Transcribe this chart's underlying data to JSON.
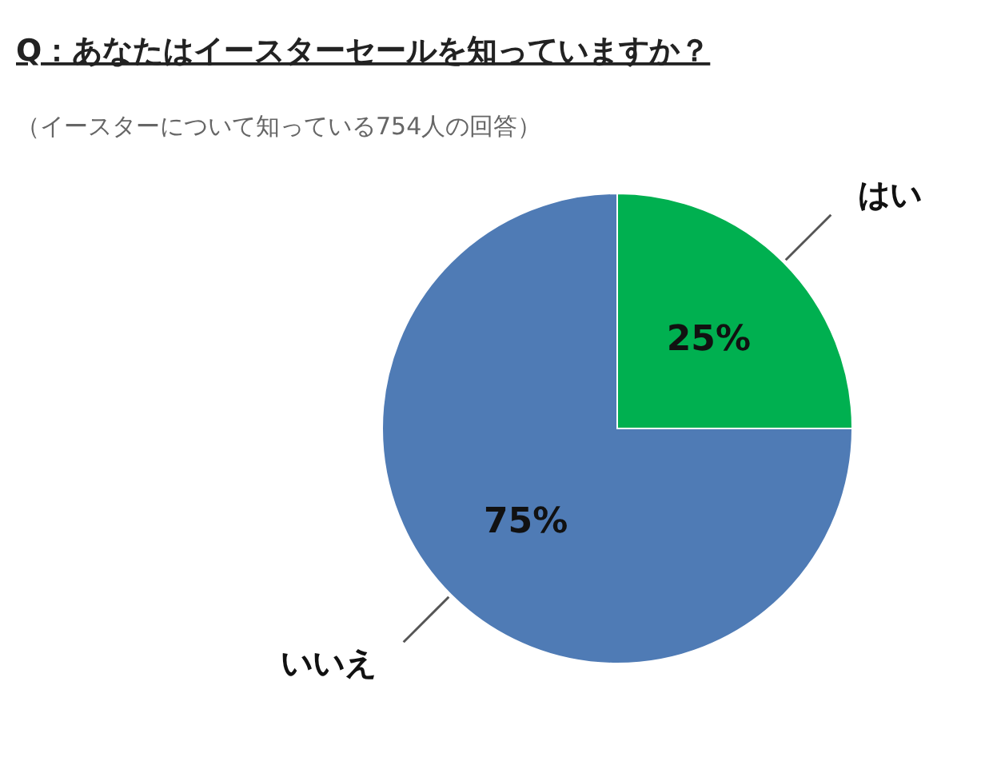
{
  "chart_data": {
    "type": "pie",
    "title": "Q：あなたはイースターセールを知っていますか？",
    "subtitle": "（イースターについて知っている754人の回答）",
    "categories": [
      "はい",
      "いいえ"
    ],
    "values": [
      25,
      75
    ],
    "colors": [
      "#00b050",
      "#4f7bb5"
    ],
    "value_labels": [
      "25%",
      "75%"
    ]
  }
}
